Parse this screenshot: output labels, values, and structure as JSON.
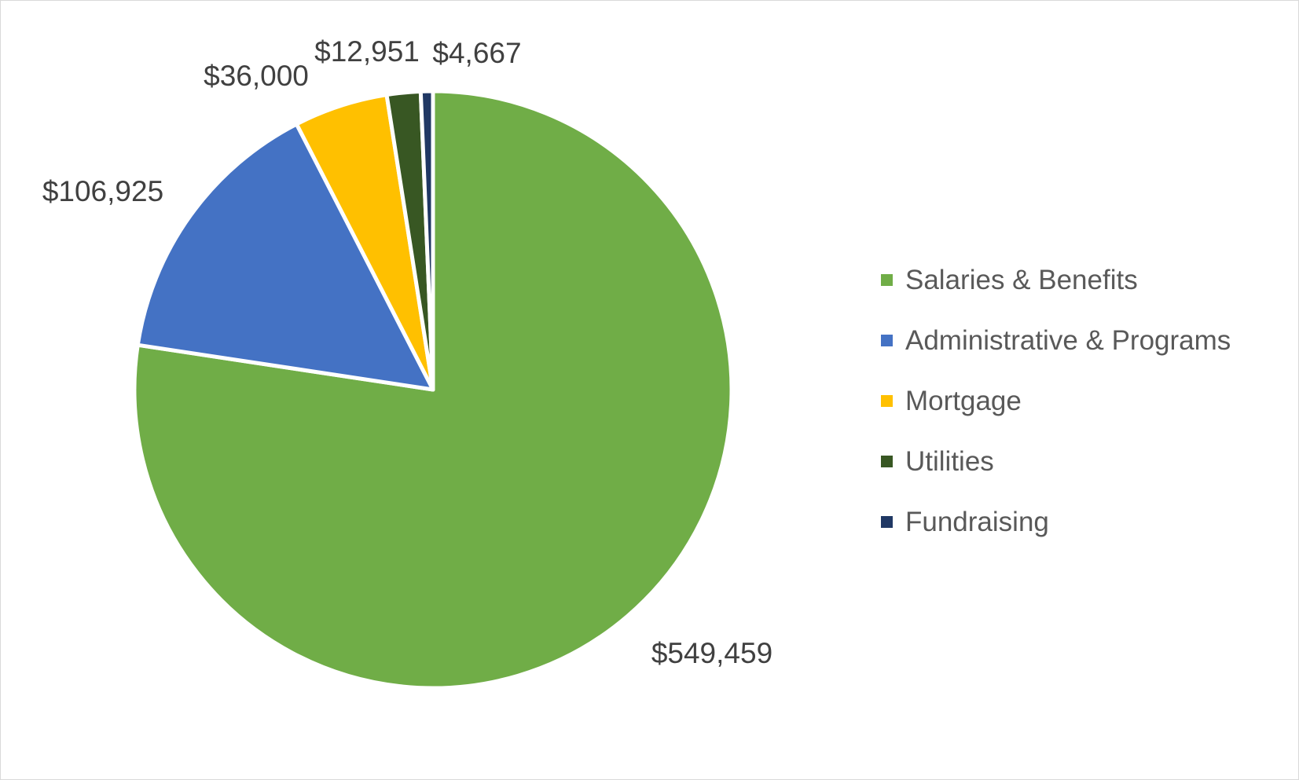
{
  "chart_data": {
    "type": "pie",
    "categories": [
      "Salaries & Benefits",
      "Administrative & Programs",
      "Mortgage",
      "Utilities",
      "Fundraising"
    ],
    "values": [
      549459,
      106925,
      36000,
      12951,
      4667
    ],
    "data_labels": [
      "$549,459",
      "$106,925",
      "$36,000",
      "$12,951",
      "$4,667"
    ],
    "colors": [
      "#70ad47",
      "#4472c4",
      "#ffc000",
      "#385723",
      "#203864"
    ],
    "start_angle_deg": 0,
    "direction": "clockwise",
    "legend_position": "right"
  }
}
